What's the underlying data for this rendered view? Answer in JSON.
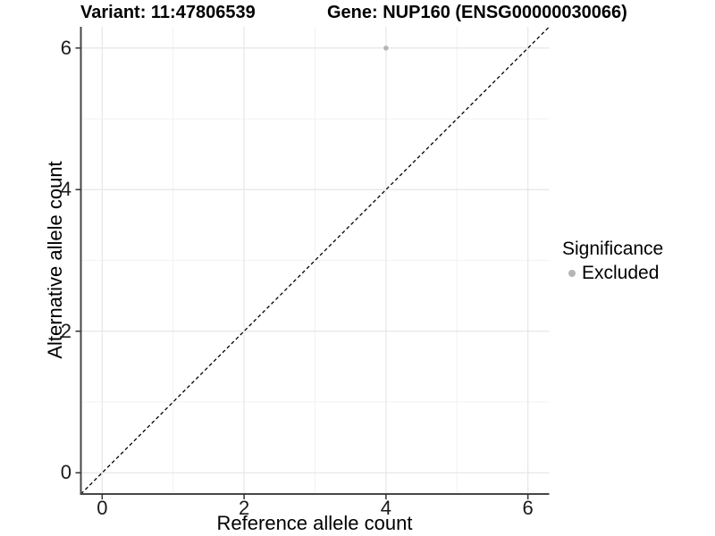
{
  "chart_data": {
    "type": "scatter",
    "title_left": "Variant: 11:47806539",
    "title_right": "Gene: NUP160 (ENSG00000030066)",
    "xlabel": "Reference allele count",
    "ylabel": "Alternative allele count",
    "xlim": [
      -0.3,
      6.3
    ],
    "ylim": [
      -0.3,
      6.3
    ],
    "x_ticks": [
      0,
      2,
      4,
      6
    ],
    "y_ticks": [
      0,
      2,
      4,
      6
    ],
    "x_minor_ticks": [
      1,
      3,
      5
    ],
    "y_minor_ticks": [
      1,
      3,
      5
    ],
    "grid": "major+minor",
    "identity_line": {
      "style": "dashed",
      "from": [
        -0.3,
        -0.3
      ],
      "to": [
        6.3,
        6.3
      ],
      "color": "#000000"
    },
    "points": [
      {
        "x": 4,
        "y": 6,
        "series": "Excluded"
      }
    ],
    "legend": {
      "title": "Significance",
      "position": "right",
      "items": [
        {
          "label": "Excluded",
          "color": "#b5b5b5"
        }
      ]
    },
    "colors": {
      "point": "#b5b5b5",
      "grid_major": "#e6e6e6",
      "grid_minor": "#f2f2f2",
      "axis_line": "#474747",
      "tick_mark": "#333333",
      "tick_text": "#1a1a1a",
      "background": "#ffffff"
    }
  }
}
